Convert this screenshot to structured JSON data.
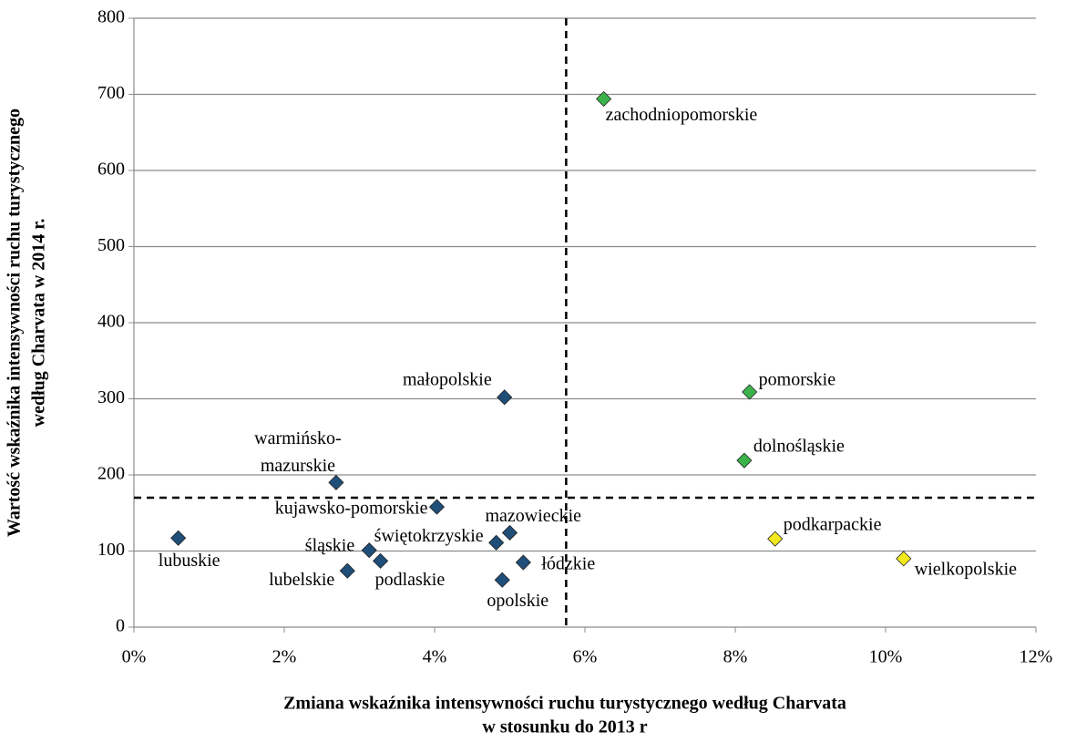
{
  "chart_data": {
    "type": "scatter",
    "x_title": [
      "Zmiana wskaźnika intensywności ruchu turystycznego według Charvata",
      "w stosunku do  2013 r"
    ],
    "y_title": [
      "Wartość wskaźnika intensywności ruchu turystycznego",
      "według Charvata w 2014 r."
    ],
    "xlim": [
      0,
      12
    ],
    "ylim": [
      0,
      800
    ],
    "xticks": [
      {
        "value": 0,
        "label": "0%"
      },
      {
        "value": 2,
        "label": "2%"
      },
      {
        "value": 4,
        "label": "4%"
      },
      {
        "value": 6,
        "label": "6%"
      },
      {
        "value": 8,
        "label": "8%"
      },
      {
        "value": 10,
        "label": "10%"
      },
      {
        "value": 12,
        "label": "12%"
      }
    ],
    "yticks": [
      0,
      100,
      200,
      300,
      400,
      500,
      600,
      700,
      800
    ],
    "grid": true,
    "reference_lines": {
      "x": 5.75,
      "y": 170
    },
    "points": [
      {
        "label": [
          "lubuskie"
        ],
        "x": 0.59,
        "y": 117,
        "color": "#1f4e79"
      },
      {
        "label": [
          "warmińsko-",
          "mazurskie"
        ],
        "x": 2.69,
        "y": 190,
        "color": "#1f4e79"
      },
      {
        "label": [
          "kujawsko-pomorskie"
        ],
        "x": 4.03,
        "y": 158,
        "color": "#1f4e79"
      },
      {
        "label": [
          "śląskie"
        ],
        "x": 3.13,
        "y": 101,
        "color": "#1f4e79"
      },
      {
        "label": [
          "lubelskie"
        ],
        "x": 2.84,
        "y": 74,
        "color": "#1f4e79"
      },
      {
        "label": [
          "podlaskie"
        ],
        "x": 3.28,
        "y": 87,
        "color": "#1f4e79"
      },
      {
        "label": [
          "świętokrzyskie"
        ],
        "x": 4.82,
        "y": 111,
        "color": "#1f4e79"
      },
      {
        "label": [
          "mazowieckie"
        ],
        "x": 5.0,
        "y": 124,
        "color": "#1f4e79"
      },
      {
        "label": [
          "opolskie"
        ],
        "x": 4.9,
        "y": 62,
        "color": "#1f4e79"
      },
      {
        "label": [
          "łódzkie"
        ],
        "x": 5.18,
        "y": 85,
        "color": "#1f4e79"
      },
      {
        "label": [
          "małopolskie"
        ],
        "x": 4.93,
        "y": 302,
        "color": "#1f4e79"
      },
      {
        "label": [
          "zachodniopomorskie"
        ],
        "x": 6.25,
        "y": 694,
        "color": "#3cb34a"
      },
      {
        "label": [
          "pomorskie"
        ],
        "x": 8.19,
        "y": 309,
        "color": "#3cb34a"
      },
      {
        "label": [
          "dolnośląskie"
        ],
        "x": 8.12,
        "y": 219,
        "color": "#3cb34a"
      },
      {
        "label": [
          "podkarpackie"
        ],
        "x": 8.53,
        "y": 116,
        "color": "#f2e81c"
      },
      {
        "label": [
          "wielkopolskie"
        ],
        "x": 10.24,
        "y": 90,
        "color": "#f2e81c"
      }
    ]
  }
}
